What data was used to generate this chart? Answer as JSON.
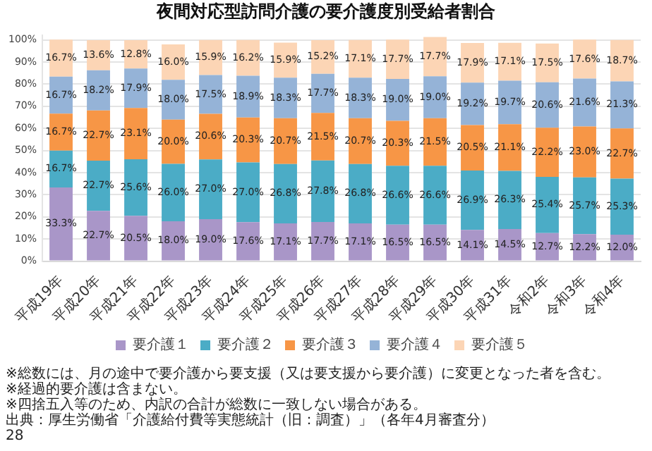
{
  "chart_data": {
    "type": "bar",
    "title": "夜間対応型訪問介護の要介護度別受給者割合",
    "categories": [
      "平成19年",
      "平成20年",
      "平成21年",
      "平成22年",
      "平成23年",
      "平成24年",
      "平成25年",
      "平成26年",
      "平成27年",
      "平成28年",
      "平成29年",
      "平成30年",
      "平成31年",
      "令和2年",
      "令和3年",
      "令和4年"
    ],
    "stacked": true,
    "series": [
      {
        "name": "要介護１",
        "color": "#a996c8",
        "values": [
          33.3,
          22.7,
          20.5,
          18.0,
          19.0,
          17.6,
          17.1,
          17.7,
          17.1,
          16.5,
          16.5,
          14.1,
          14.5,
          12.7,
          12.2,
          12.0
        ],
        "value_labels": [
          "33.3%",
          "22.7%",
          "20.5%",
          "18.0%",
          "19.0%",
          "17.6%",
          "17.1%",
          "17.7%",
          "17.1%",
          "16.5%",
          "16.5%",
          "14.1%",
          "14.5%",
          "12.7%",
          "12.2%",
          "12.0%"
        ]
      },
      {
        "name": "要介護２",
        "color": "#4bacc6",
        "values": [
          16.7,
          22.7,
          25.6,
          26.0,
          27.0,
          27.0,
          26.8,
          27.8,
          26.8,
          26.6,
          26.6,
          26.9,
          26.3,
          25.4,
          25.7,
          25.3
        ],
        "value_labels": [
          "16.7%",
          "22.7%",
          "25.6%",
          "26.0%",
          "27.0%",
          "27.0%",
          "26.8%",
          "27.8%",
          "26.8%",
          "26.6%",
          "26.6%",
          "26.9%",
          "26.3%",
          "25.4%",
          "25.7%",
          "25.3%"
        ]
      },
      {
        "name": "要介護３",
        "color": "#f79646",
        "values": [
          16.7,
          22.7,
          23.1,
          20.0,
          20.6,
          20.3,
          20.7,
          21.5,
          20.7,
          20.3,
          21.5,
          20.5,
          21.1,
          22.2,
          23.0,
          22.7
        ],
        "value_labels": [
          "16.7%",
          "22.7%",
          "23.1%",
          "20.0%",
          "20.6%",
          "20.3%",
          "20.7%",
          "21.5%",
          "20.7%",
          "20.3%",
          "21.5%",
          "20.5%",
          "21.1%",
          "22.2%",
          "23.0%",
          "22.7%"
        ]
      },
      {
        "name": "要介護４",
        "color": "#95b3d7",
        "values": [
          16.7,
          18.2,
          17.9,
          18.0,
          17.5,
          18.9,
          18.3,
          17.7,
          18.3,
          19.0,
          19.0,
          19.2,
          19.7,
          20.6,
          21.6,
          21.3
        ],
        "value_labels": [
          "16.7%",
          "18.2%",
          "17.9%",
          "18.0%",
          "17.5%",
          "18.9%",
          "18.3%",
          "17.7%",
          "18.3%",
          "19.0%",
          "19.0%",
          "19.2%",
          "19.7%",
          "20.6%",
          "21.6%",
          "21.3%"
        ]
      },
      {
        "name": "要介護５",
        "color": "#fcd5b5",
        "values": [
          16.7,
          13.6,
          12.8,
          16.0,
          15.9,
          16.2,
          15.9,
          15.2,
          17.1,
          17.7,
          17.7,
          17.9,
          17.1,
          17.5,
          17.6,
          18.7
        ],
        "value_labels": [
          "16.7%",
          "13.6%",
          "12.8%",
          "16.0%",
          "15.9%",
          "16.2%",
          "15.9%",
          "15.2%",
          "17.1%",
          "17.7%",
          "17.7%",
          "17.9%",
          "17.1%",
          "17.5%",
          "17.6%",
          "18.7%"
        ]
      }
    ],
    "ylim": [
      0,
      102
    ],
    "yticks": [
      {
        "value": 0,
        "label": "0%"
      },
      {
        "value": 10,
        "label": "10%"
      },
      {
        "value": 20,
        "label": "20%"
      },
      {
        "value": 30,
        "label": "30%"
      },
      {
        "value": 40,
        "label": "40%"
      },
      {
        "value": 50,
        "label": "50%"
      },
      {
        "value": 60,
        "label": "60%"
      },
      {
        "value": 70,
        "label": "70%"
      },
      {
        "value": 80,
        "label": "80%"
      },
      {
        "value": 90,
        "label": "90%"
      },
      {
        "value": 100,
        "label": "100%"
      }
    ],
    "grid": "y",
    "legend": "bottom",
    "annotations": [
      "※総数には、月の途中で要介護から要支援（又は要支援から要介護）に変更となった者を含む。",
      "※経過的要介護は含まない。",
      "※四捨五入等のため、内訳の合計が総数に一致しない場合がある。",
      "出典：厚生労働省「介護給付費等実態統計（旧：調査）」（各年4月審査分）",
      "28"
    ]
  }
}
